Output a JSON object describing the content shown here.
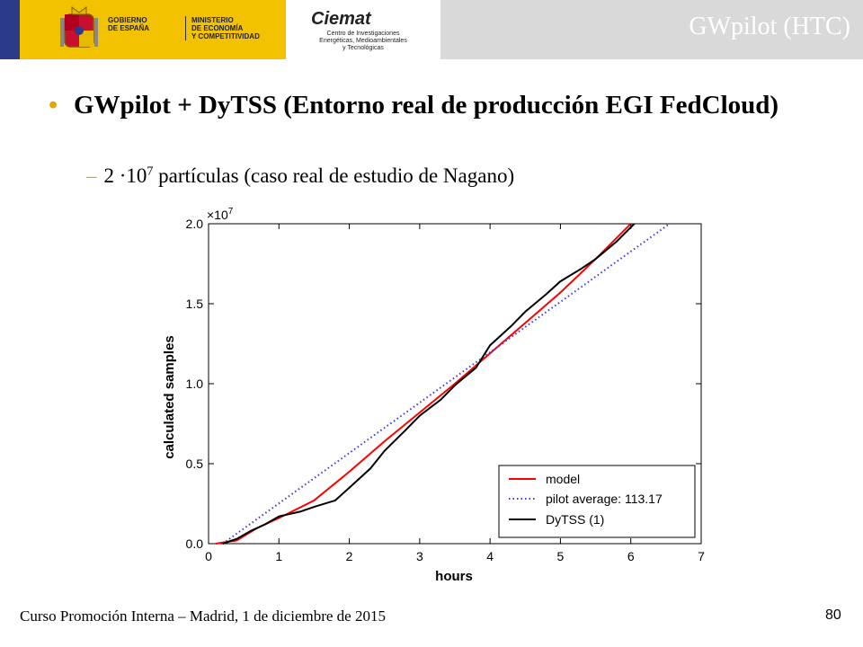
{
  "header": {
    "slide_title": "GWpilot (HTC)",
    "gov_label_1": [
      "GOBIERNO",
      "DE ESPAÑA"
    ],
    "gov_label_2": [
      "MINISTERIO",
      "DE ECONOMÍA",
      "Y COMPETITIVIDAD"
    ],
    "ciemat_logo": "Ciemat",
    "ciemat_sub": [
      "Centro de Investigaciones",
      "Energéticas, Medioambientales",
      "y Tecnológicas"
    ]
  },
  "content": {
    "bullet_main": "GWpilot + DyTSS (Entorno real de producción EGI FedCloud)",
    "bullet_sub_prefix": "2 ·10",
    "bullet_sub_exp": "7",
    "bullet_sub_rest": " partículas (caso real de estudio de Nagano)"
  },
  "footer": {
    "text": "Curso Promoción Interna – Madrid, 1 de diciembre de 2015",
    "page": "80"
  },
  "chart_data": {
    "type": "line",
    "xlabel": "hours",
    "ylabel": "calculated samples",
    "offset_label": "×10",
    "offset_exp": "7",
    "xlim": [
      0,
      7
    ],
    "ylim": [
      0,
      2.0
    ],
    "xticks": [
      "0",
      "1",
      "2",
      "3",
      "4",
      "5",
      "6",
      "7"
    ],
    "yticks": [
      "0.0",
      "0.5",
      "1.0",
      "1.5",
      "2.0"
    ],
    "legend_position": "lower-right",
    "series": [
      {
        "name": "model",
        "color": "#ff0000",
        "style": "solid",
        "x": [
          0.1,
          0.4,
          0.7,
          1.0,
          1.5,
          2.0,
          2.5,
          3.0,
          3.5,
          4.0,
          4.5,
          5.0,
          5.5,
          6.0
        ],
        "y": [
          0.0,
          0.02,
          0.1,
          0.16,
          0.27,
          0.45,
          0.64,
          0.82,
          1.0,
          1.19,
          1.38,
          1.57,
          1.78,
          2.0
        ]
      },
      {
        "name": "pilot average: 113.17",
        "color": "#3a3adf",
        "style": "dotted",
        "x": [
          0.2,
          6.55
        ],
        "y": [
          0.0,
          2.0
        ]
      },
      {
        "name": "DyTSS (1)",
        "color": "#000000",
        "style": "solid",
        "x": [
          0.2,
          0.4,
          0.6,
          0.8,
          1.0,
          1.3,
          1.5,
          1.8,
          2.0,
          2.3,
          2.5,
          2.8,
          3.0,
          3.3,
          3.5,
          3.8,
          4.0,
          4.3,
          4.5,
          4.8,
          5.0,
          5.3,
          5.5,
          5.8,
          6.05
        ],
        "y": [
          0.0,
          0.03,
          0.08,
          0.12,
          0.17,
          0.2,
          0.23,
          0.27,
          0.35,
          0.47,
          0.58,
          0.71,
          0.8,
          0.9,
          0.99,
          1.1,
          1.24,
          1.36,
          1.45,
          1.56,
          1.64,
          1.72,
          1.78,
          1.89,
          2.0
        ]
      }
    ]
  }
}
